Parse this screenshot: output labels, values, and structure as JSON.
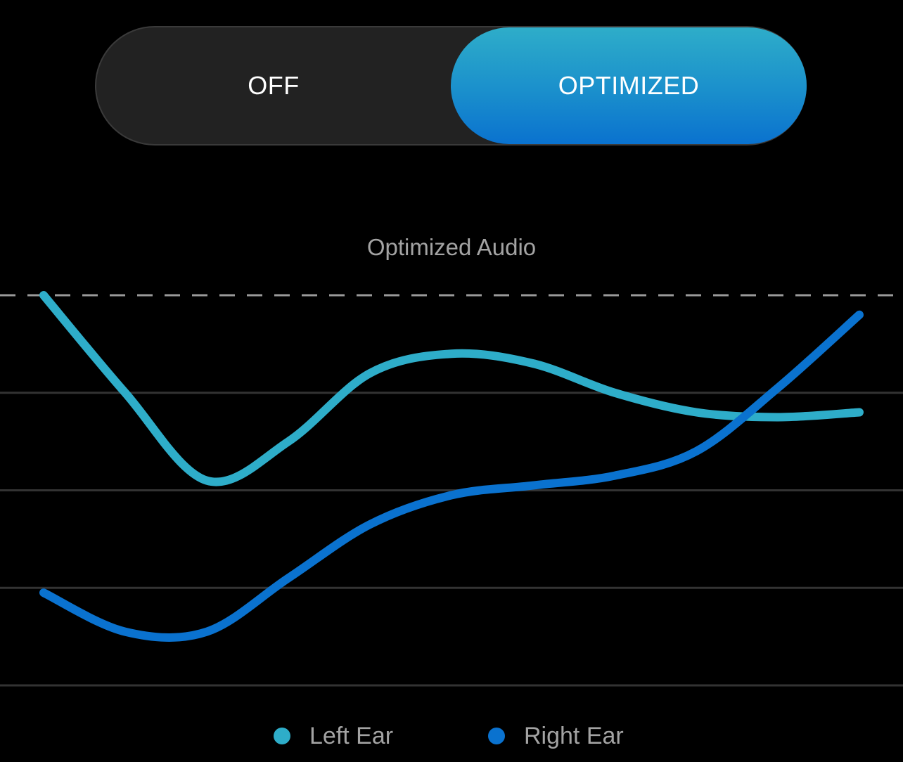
{
  "toggle": {
    "options": [
      {
        "label": "OFF",
        "selected": false
      },
      {
        "label": "OPTIMIZED",
        "selected": true
      }
    ]
  },
  "chart": {
    "title": "Optimized Audio",
    "legend": [
      {
        "label": "Left Ear",
        "color": "#2eadc9"
      },
      {
        "label": "Right Ear",
        "color": "#0a72cf"
      }
    ]
  },
  "chart_data": {
    "type": "line",
    "title": "Optimized Audio",
    "xlabel": "",
    "ylabel": "",
    "grid": true,
    "legend_position": "bottom-center",
    "x": [
      0,
      1,
      2,
      3,
      4,
      5,
      6,
      7,
      8,
      9,
      10
    ],
    "ylim": [
      0,
      4
    ],
    "reference_line": 4,
    "series": [
      {
        "name": "Left Ear",
        "color": "#2eadc9",
        "values": [
          4.0,
          3.0,
          2.1,
          2.5,
          3.2,
          3.4,
          3.3,
          3.0,
          2.8,
          2.75,
          2.8
        ]
      },
      {
        "name": "Right Ear",
        "color": "#0a72cf",
        "values": [
          0.95,
          0.55,
          0.55,
          1.1,
          1.65,
          1.95,
          2.05,
          2.15,
          2.4,
          3.05,
          3.8
        ]
      }
    ]
  }
}
